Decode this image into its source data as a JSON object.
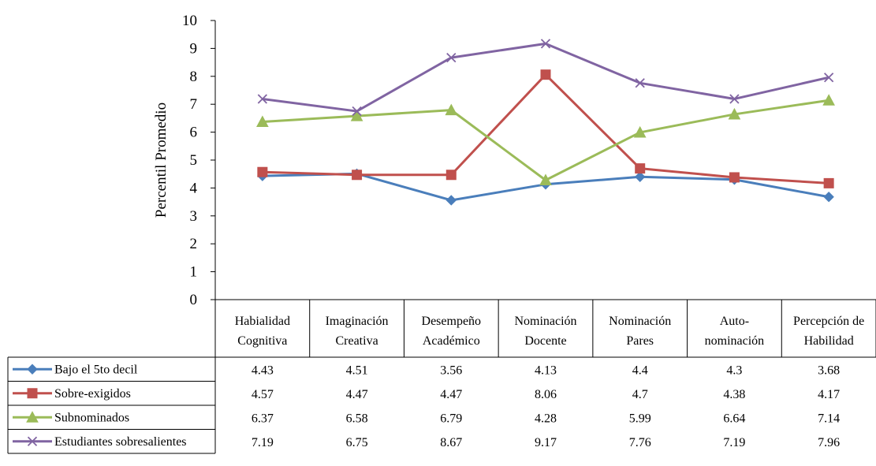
{
  "chart_data": {
    "type": "line",
    "title": "",
    "xlabel": "",
    "ylabel": "Percentil Promedio",
    "ylim": [
      0,
      10
    ],
    "yticks": [
      "0",
      "1",
      "2",
      "3",
      "4",
      "5",
      "6",
      "7",
      "8",
      "9",
      "10"
    ],
    "grid": false,
    "legend": "data-table-left",
    "categories": [
      [
        "Habialidad",
        "Cognitiva"
      ],
      [
        "Imaginación",
        "Creativa"
      ],
      [
        "Desempeño",
        "Académico"
      ],
      [
        "Nominación",
        "Docente"
      ],
      [
        "Nominación",
        "Pares"
      ],
      [
        "Auto-",
        "nominación"
      ],
      [
        "Percepción de",
        "Habilidad"
      ]
    ],
    "series": [
      {
        "name": "Bajo el 5to decil",
        "color": "#4A7EBB",
        "marker": "diamond",
        "values": [
          4.43,
          4.51,
          3.56,
          4.13,
          4.4,
          4.3,
          3.68
        ],
        "labels": [
          "4.43",
          "4.51",
          "3.56",
          "4.13",
          "4.4",
          "4.3",
          "3.68"
        ]
      },
      {
        "name": "Sobre-exigidos",
        "color": "#C0504D",
        "marker": "square",
        "values": [
          4.57,
          4.47,
          4.47,
          8.06,
          4.7,
          4.38,
          4.17
        ],
        "labels": [
          "4.57",
          "4.47",
          "4.47",
          "8.06",
          "4.7",
          "4.38",
          "4.17"
        ]
      },
      {
        "name": "Subnominados",
        "color": "#9BBB59",
        "marker": "triangle",
        "values": [
          6.37,
          6.58,
          6.79,
          4.28,
          5.99,
          6.64,
          7.14
        ],
        "labels": [
          "6.37",
          "6.58",
          "6.79",
          "4.28",
          "5.99",
          "6.64",
          "7.14"
        ]
      },
      {
        "name": "Estudiantes sobresalientes",
        "color": "#8064A2",
        "marker": "x",
        "values": [
          7.19,
          6.75,
          8.67,
          9.17,
          7.76,
          7.19,
          7.96
        ],
        "labels": [
          "7.19",
          "6.75",
          "8.67",
          "9.17",
          "7.76",
          "7.19",
          "7.96"
        ]
      }
    ]
  }
}
